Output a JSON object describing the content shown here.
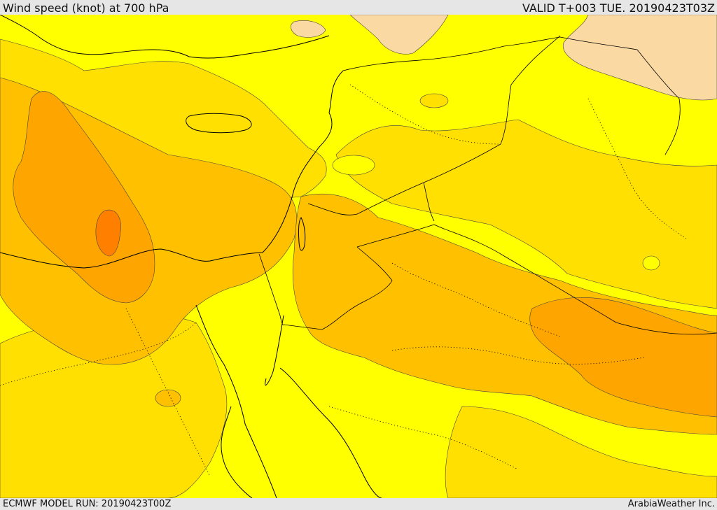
{
  "header": {
    "title": "Wind speed (knot) at 700 hPa",
    "valid": "VALID T+003 TUE. 20190423T03Z"
  },
  "footer": {
    "model_run": "ECMWF MODEL RUN: 20190423T00Z",
    "credit": "ArabiaWeather Inc."
  },
  "map": {
    "variable": "wind speed",
    "level": "700 hPa",
    "units": "knot",
    "colors": {
      "background": "#ffff00",
      "band_light": "#ffe000",
      "band_medium": "#ffc000",
      "band_strong": "#ffa500",
      "band_strongest": "#ff8000",
      "calm": "#fbd9a3",
      "coastline": "#000000",
      "contour": "#444444"
    }
  }
}
